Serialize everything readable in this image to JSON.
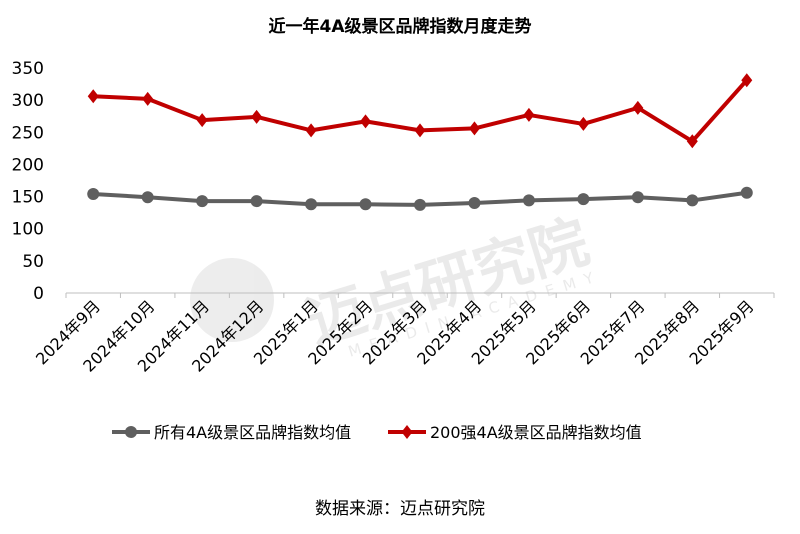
{
  "chart_data": {
    "type": "line",
    "title": "近一年4A级景区品牌指数月度走势",
    "categories": [
      "2024年9月",
      "2024年10月",
      "2024年11月",
      "2024年12月",
      "2025年1月",
      "2025年2月",
      "2025年3月",
      "2025年4月",
      "2025年5月",
      "2025年6月",
      "2025年7月",
      "2025年8月",
      "2025年9月"
    ],
    "series": [
      {
        "name": "所有4A级景区品牌指数均值",
        "color": "#5f5f5f",
        "marker": "circle",
        "values": [
          154,
          149,
          143,
          143,
          138,
          138,
          137,
          140,
          144,
          146,
          149,
          144,
          156
        ]
      },
      {
        "name": "200强4A级景区品牌指数均值",
        "color": "#c00000",
        "marker": "diamond",
        "values": [
          306,
          302,
          269,
          274,
          253,
          267,
          253,
          256,
          277,
          263,
          288,
          236,
          331
        ]
      }
    ],
    "ylim": [
      0,
      350
    ],
    "yticks": [
      0,
      50,
      100,
      150,
      200,
      250,
      300,
      350
    ],
    "xlabel": "",
    "ylabel": "",
    "grid": false,
    "legend_position": "bottom",
    "source": "数据来源：迈点研究院",
    "watermark": {
      "cn": "迈点研究院",
      "en": "MEADIN ACADEMY"
    }
  }
}
